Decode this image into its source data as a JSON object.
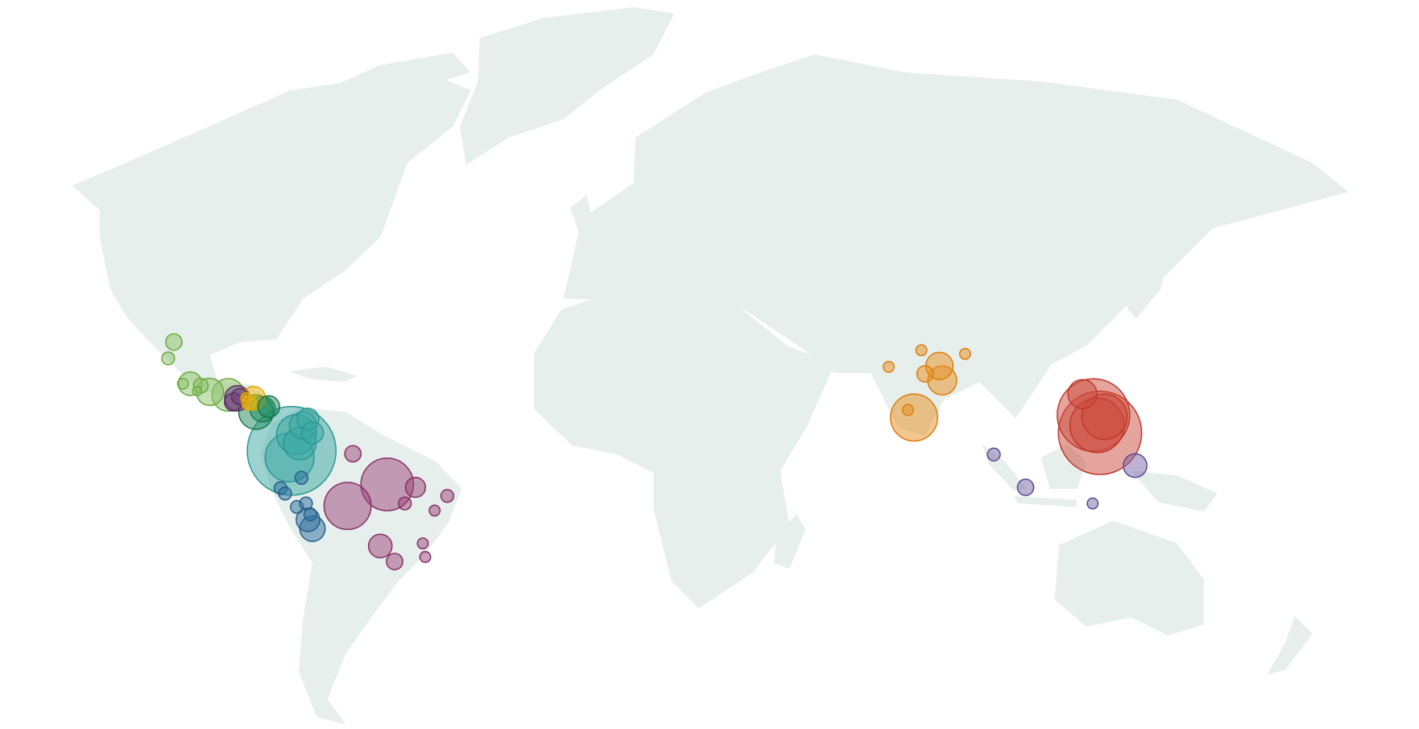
{
  "map": {
    "projection": "mercator",
    "land_color": "#e6efeb",
    "background_color": "#ffffff"
  },
  "groups": {
    "mexico": {
      "fill": "#8cc26a",
      "stroke": "#6aa83e"
    },
    "purple": {
      "fill": "#6b3a78",
      "stroke": "#5a2d66"
    },
    "yellow": {
      "fill": "#f2b705",
      "stroke": "#e0a800"
    },
    "darkgreen": {
      "fill": "#1e8a5c",
      "stroke": "#17764d"
    },
    "teal": {
      "fill": "#3aa8a3",
      "stroke": "#2a9792"
    },
    "blue": {
      "fill": "#2e6f9e",
      "stroke": "#235d88"
    },
    "magenta": {
      "fill": "#9b4379",
      "stroke": "#862f66"
    },
    "orange": {
      "fill": "#e8901f",
      "stroke": "#dd7c0c"
    },
    "red": {
      "fill": "#cc4a3b",
      "stroke": "#c0392b"
    },
    "lavender": {
      "fill": "#7a68a8",
      "stroke": "#5a4790"
    }
  },
  "points": [
    {
      "group": "mexico",
      "lon": -102.3,
      "lat": 27.5,
      "value": 81
    },
    {
      "group": "mexico",
      "lon": -103.7,
      "lat": 23.9,
      "value": 49
    },
    {
      "group": "mexico",
      "lon": -98.3,
      "lat": 18.1,
      "value": 169
    },
    {
      "group": "mexico",
      "lon": -100.1,
      "lat": 18.1,
      "value": 36
    },
    {
      "group": "mexico",
      "lon": -95.7,
      "lat": 17.65,
      "value": 64
    },
    {
      "group": "mexico",
      "lon": -93.5,
      "lat": 16.2,
      "value": 225
    },
    {
      "group": "mexico",
      "lon": -89.0,
      "lat": 15.5,
      "value": 324
    },
    {
      "group": "mexico",
      "lon": -96.6,
      "lat": 16.4,
      "value": 25
    },
    {
      "group": "purple",
      "lon": -86.8,
      "lat": 14.7,
      "value": 196
    },
    {
      "group": "purple",
      "lon": -87.7,
      "lat": 13.8,
      "value": 100
    },
    {
      "group": "purple",
      "lon": -86.2,
      "lat": 15.1,
      "value": 81
    },
    {
      "group": "darkgreen",
      "lon": -82.2,
      "lat": 11.4,
      "value": 361
    },
    {
      "group": "darkgreen",
      "lon": -80.6,
      "lat": 12.1,
      "value": 196
    },
    {
      "group": "darkgreen",
      "lon": -79.1,
      "lat": 12.7,
      "value": 144
    },
    {
      "group": "yellow",
      "lon": -82.8,
      "lat": 14.7,
      "value": 169
    },
    {
      "group": "yellow",
      "lon": -83.9,
      "lat": 13.6,
      "value": 64
    },
    {
      "group": "yellow",
      "lon": -84.6,
      "lat": 14.7,
      "value": 36
    },
    {
      "group": "teal",
      "lon": -73.5,
      "lat": 2.0,
      "value": 2401
    },
    {
      "group": "teal",
      "lon": -74.0,
      "lat": 0.4,
      "value": 729
    },
    {
      "group": "teal",
      "lon": -72.3,
      "lat": 6.0,
      "value": 484
    },
    {
      "group": "teal",
      "lon": -71.5,
      "lat": 3.8,
      "value": 324
    },
    {
      "group": "teal",
      "lon": -70.7,
      "lat": 8.2,
      "value": 225
    },
    {
      "group": "teal",
      "lon": -69.5,
      "lat": 9.7,
      "value": 144
    },
    {
      "group": "teal",
      "lon": -68.4,
      "lat": 6.4,
      "value": 144
    },
    {
      "group": "blue",
      "lon": -71.1,
      "lat": -4.6,
      "value": 49
    },
    {
      "group": "blue",
      "lon": -76.2,
      "lat": -7.1,
      "value": 49
    },
    {
      "group": "blue",
      "lon": -75.1,
      "lat": -8.4,
      "value": 49
    },
    {
      "group": "blue",
      "lon": -72.2,
      "lat": -11.65,
      "value": 49
    },
    {
      "group": "blue",
      "lon": -70.0,
      "lat": -10.8,
      "value": 49
    },
    {
      "group": "blue",
      "lon": -69.5,
      "lat": -14.7,
      "value": 169
    },
    {
      "group": "blue",
      "lon": -68.4,
      "lat": -16.8,
      "value": 196
    },
    {
      "group": "blue",
      "lon": -68.9,
      "lat": -13.4,
      "value": 49
    },
    {
      "group": "magenta",
      "lon": -58.5,
      "lat": 1.3,
      "value": 81
    },
    {
      "group": "magenta",
      "lon": -50.1,
      "lat": -6.2,
      "value": 841
    },
    {
      "group": "magenta",
      "lon": -59.8,
      "lat": -11.4,
      "value": 676
    },
    {
      "group": "magenta",
      "lon": -43.2,
      "lat": -6.9,
      "value": 121
    },
    {
      "group": "magenta",
      "lon": -45.8,
      "lat": -10.8,
      "value": 49
    },
    {
      "group": "magenta",
      "lon": -35.4,
      "lat": -9.0,
      "value": 49
    },
    {
      "group": "magenta",
      "lon": -38.5,
      "lat": -12.5,
      "value": 36
    },
    {
      "group": "magenta",
      "lon": -51.8,
      "lat": -20.8,
      "value": 169
    },
    {
      "group": "magenta",
      "lon": -48.3,
      "lat": -24.3,
      "value": 81
    },
    {
      "group": "magenta",
      "lon": -41.4,
      "lat": -20.2,
      "value": 36
    },
    {
      "group": "magenta",
      "lon": -40.8,
      "lat": -23.3,
      "value": 36
    },
    {
      "group": "orange",
      "lon": 72.6,
      "lat": 22.0,
      "value": 36
    },
    {
      "group": "orange",
      "lon": 80.6,
      "lat": 25.7,
      "value": 36
    },
    {
      "group": "orange",
      "lon": 85.0,
      "lat": 22.2,
      "value": 225
    },
    {
      "group": "orange",
      "lon": 85.7,
      "lat": 18.9,
      "value": 256
    },
    {
      "group": "orange",
      "lon": 81.5,
      "lat": 20.4,
      "value": 81
    },
    {
      "group": "orange",
      "lon": 91.3,
      "lat": 24.9,
      "value": 36
    },
    {
      "group": "orange",
      "lon": 78.8,
      "lat": 10.1,
      "value": 676
    },
    {
      "group": "orange",
      "lon": 77.3,
      "lat": 11.9,
      "value": 36
    },
    {
      "group": "red",
      "lon": 124.3,
      "lat": 6.4,
      "value": 2116
    },
    {
      "group": "red",
      "lon": 122.7,
      "lat": 10.7,
      "value": 1600
    },
    {
      "group": "red",
      "lon": 123.6,
      "lat": 8.2,
      "value": 900
    },
    {
      "group": "red",
      "lon": 125.4,
      "lat": 10.3,
      "value": 625
    },
    {
      "group": "red",
      "lon": 120.0,
      "lat": 15.7,
      "value": 256
    },
    {
      "group": "lavender",
      "lon": 98.3,
      "lat": 1.1,
      "value": 49
    },
    {
      "group": "lavender",
      "lon": 106.1,
      "lat": -6.9,
      "value": 81
    },
    {
      "group": "lavender",
      "lon": 122.5,
      "lat": -10.8,
      "value": 36
    },
    {
      "group": "lavender",
      "lon": 132.9,
      "lat": -1.6,
      "value": 169
    }
  ]
}
